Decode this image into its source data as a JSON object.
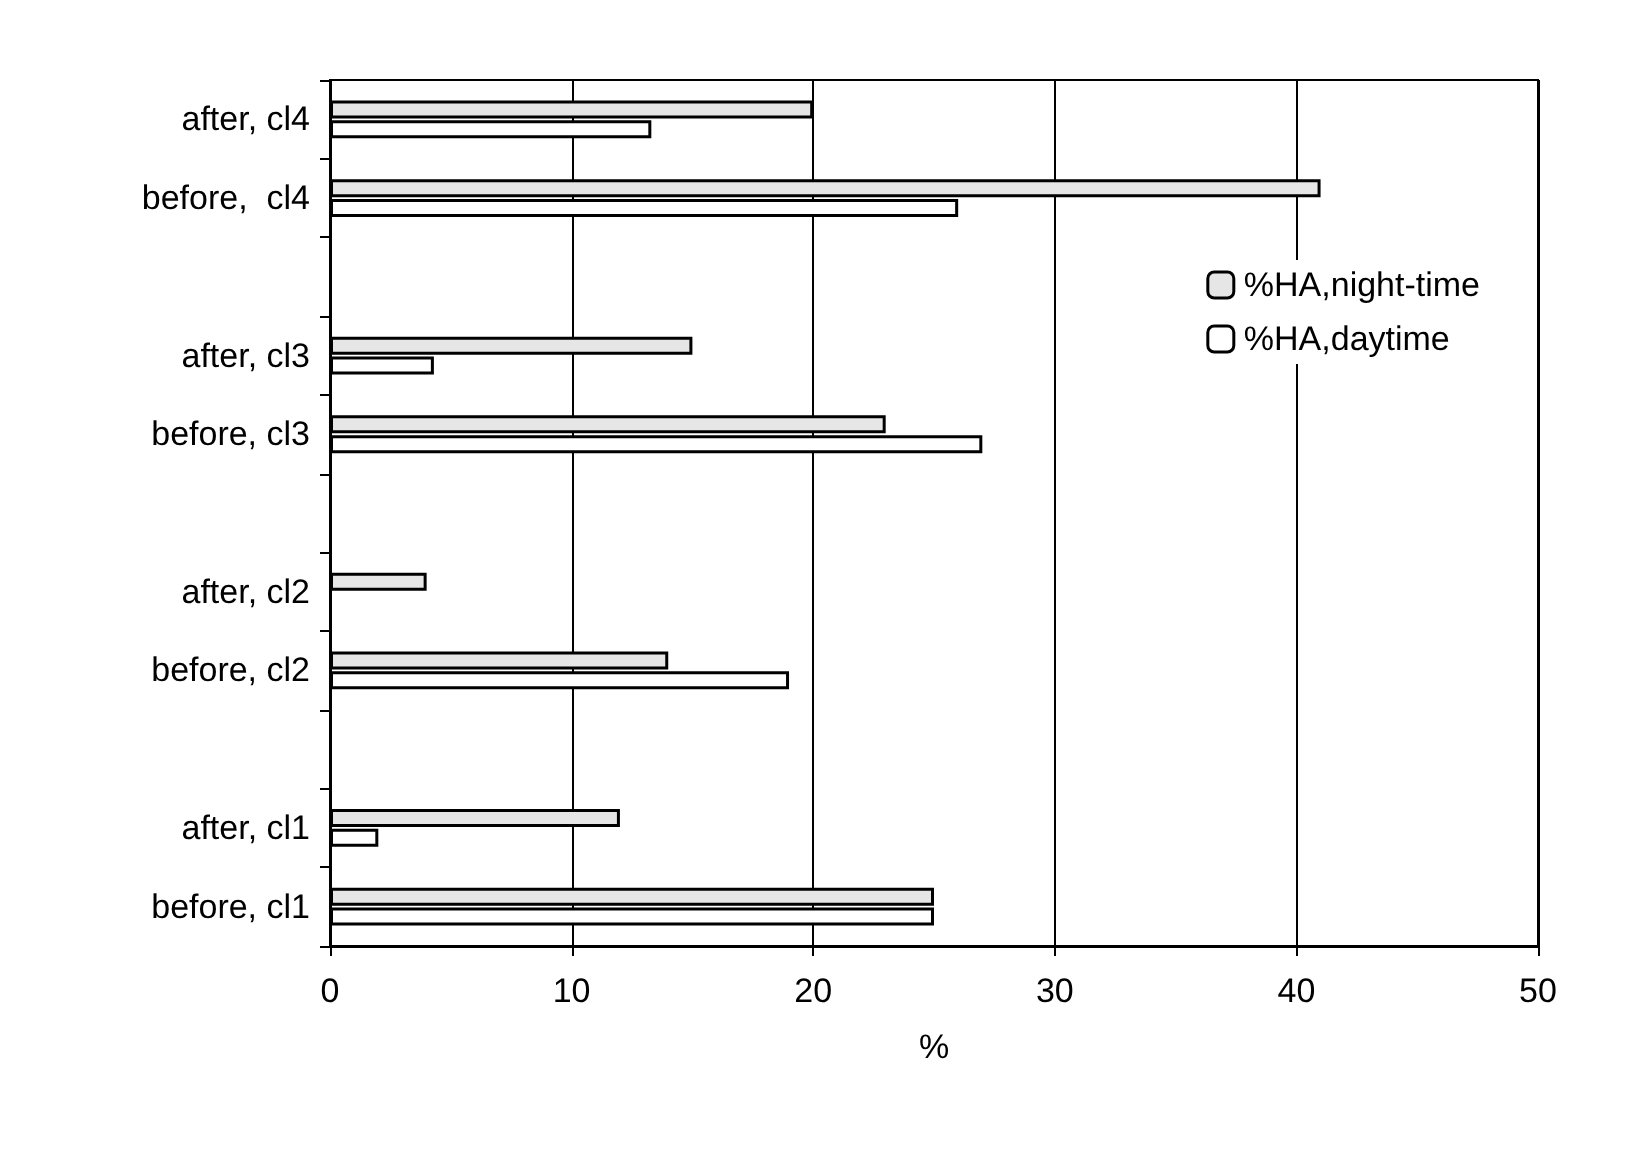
{
  "chart_data": {
    "type": "bar",
    "orientation": "horizontal",
    "xlabel": "%",
    "categories": [
      "after, cl4",
      "before,  cl4",
      null,
      "after, cl3",
      "before, cl3",
      null,
      "after, cl2",
      "before, cl2",
      null,
      "after, cl1",
      "before, cl1"
    ],
    "series": [
      {
        "name": "%HA,night-time",
        "color": "#e6e6e6",
        "values": [
          20,
          41,
          null,
          15,
          23,
          null,
          4,
          14,
          null,
          12,
          25
        ]
      },
      {
        "name": "%HA,daytime",
        "color": "#ffffff",
        "values": [
          13.3,
          26,
          null,
          4.3,
          27,
          null,
          null,
          19,
          null,
          2,
          25
        ]
      }
    ],
    "xlim": [
      0,
      50
    ],
    "xticks": [
      0,
      10,
      20,
      30,
      40,
      50
    ],
    "grid": "x",
    "legend": "top right"
  }
}
